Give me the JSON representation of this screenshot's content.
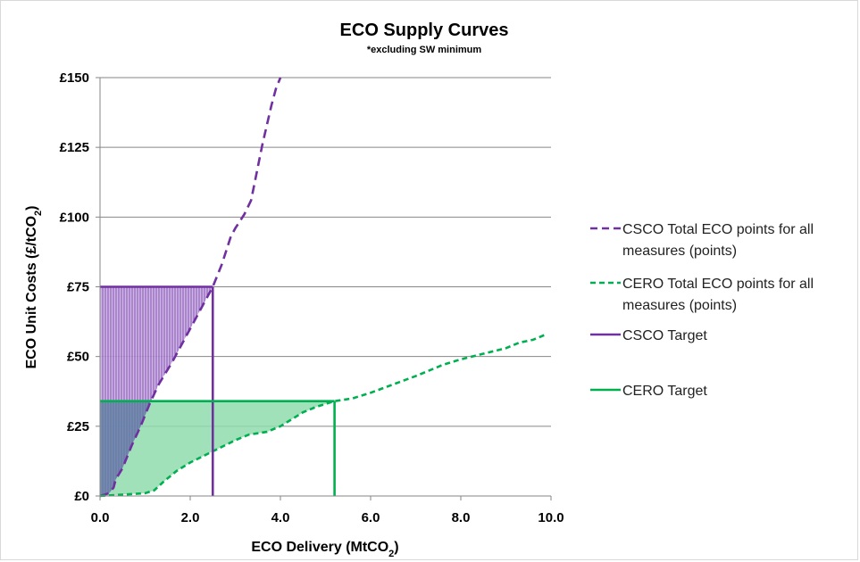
{
  "chart_data": {
    "type": "line",
    "title": "ECO Supply Curves",
    "subtitle": "*excluding SW minimum",
    "xlabel": "ECO Delivery (MtCO2)",
    "ylabel": "ECO Unit Costs (£/tCO2)",
    "xlim": [
      0,
      10
    ],
    "ylim": [
      0,
      150
    ],
    "x_ticks": [
      0,
      2,
      4,
      6,
      8,
      10
    ],
    "x_tick_labels": [
      "0.0",
      "2.0",
      "4.0",
      "6.0",
      "8.0",
      "10.0"
    ],
    "y_ticks": [
      0,
      25,
      50,
      75,
      100,
      125,
      150
    ],
    "y_tick_labels": [
      "£0",
      "£25",
      "£50",
      "£75",
      "£100",
      "£125",
      "£150"
    ],
    "grid": "horizontal",
    "legend_position": "right",
    "series": [
      {
        "name": "CSCO   Total ECO points for all measures (points)",
        "style": "dashed",
        "color": "#7030a0",
        "points": [
          [
            0,
            0
          ],
          [
            0.1,
            0.5
          ],
          [
            0.2,
            1
          ],
          [
            0.3,
            3
          ],
          [
            0.35,
            6
          ],
          [
            0.5,
            10
          ],
          [
            0.7,
            18
          ],
          [
            0.9,
            25
          ],
          [
            1.1,
            33
          ],
          [
            1.3,
            40
          ],
          [
            1.6,
            48
          ],
          [
            1.9,
            57
          ],
          [
            2.2,
            66
          ],
          [
            2.5,
            75
          ],
          [
            2.7,
            83
          ],
          [
            2.9,
            93
          ],
          [
            3.0,
            96
          ],
          [
            3.2,
            101
          ],
          [
            3.35,
            106
          ],
          [
            3.5,
            118
          ],
          [
            3.6,
            126
          ],
          [
            3.7,
            133
          ],
          [
            3.8,
            140
          ],
          [
            3.9,
            146
          ],
          [
            4.0,
            150
          ]
        ]
      },
      {
        "name": "CERO   Total ECO points for all measures (points)",
        "style": "dashed",
        "color": "#00b050",
        "points": [
          [
            0,
            0
          ],
          [
            0.5,
            0.5
          ],
          [
            1.0,
            1
          ],
          [
            1.2,
            2
          ],
          [
            1.4,
            5
          ],
          [
            1.7,
            9
          ],
          [
            2.0,
            12
          ],
          [
            2.5,
            16
          ],
          [
            3.0,
            20
          ],
          [
            3.3,
            22
          ],
          [
            3.7,
            23
          ],
          [
            4.0,
            25
          ],
          [
            4.5,
            30
          ],
          [
            4.8,
            32
          ],
          [
            5.2,
            34
          ],
          [
            5.6,
            35
          ],
          [
            6.0,
            37
          ],
          [
            6.5,
            40
          ],
          [
            7.0,
            43
          ],
          [
            7.3,
            45
          ],
          [
            7.6,
            47
          ],
          [
            8.0,
            49
          ],
          [
            8.5,
            51
          ],
          [
            9.0,
            53
          ],
          [
            9.3,
            55
          ],
          [
            9.6,
            56
          ],
          [
            9.9,
            58
          ]
        ]
      },
      {
        "name": "CSCO Target",
        "style": "solid",
        "color": "#7030a0",
        "target_x": 2.5,
        "target_y": 75
      },
      {
        "name": "CERO Target",
        "style": "solid",
        "color": "#00b050",
        "target_x": 5.2,
        "target_y": 34
      }
    ]
  }
}
